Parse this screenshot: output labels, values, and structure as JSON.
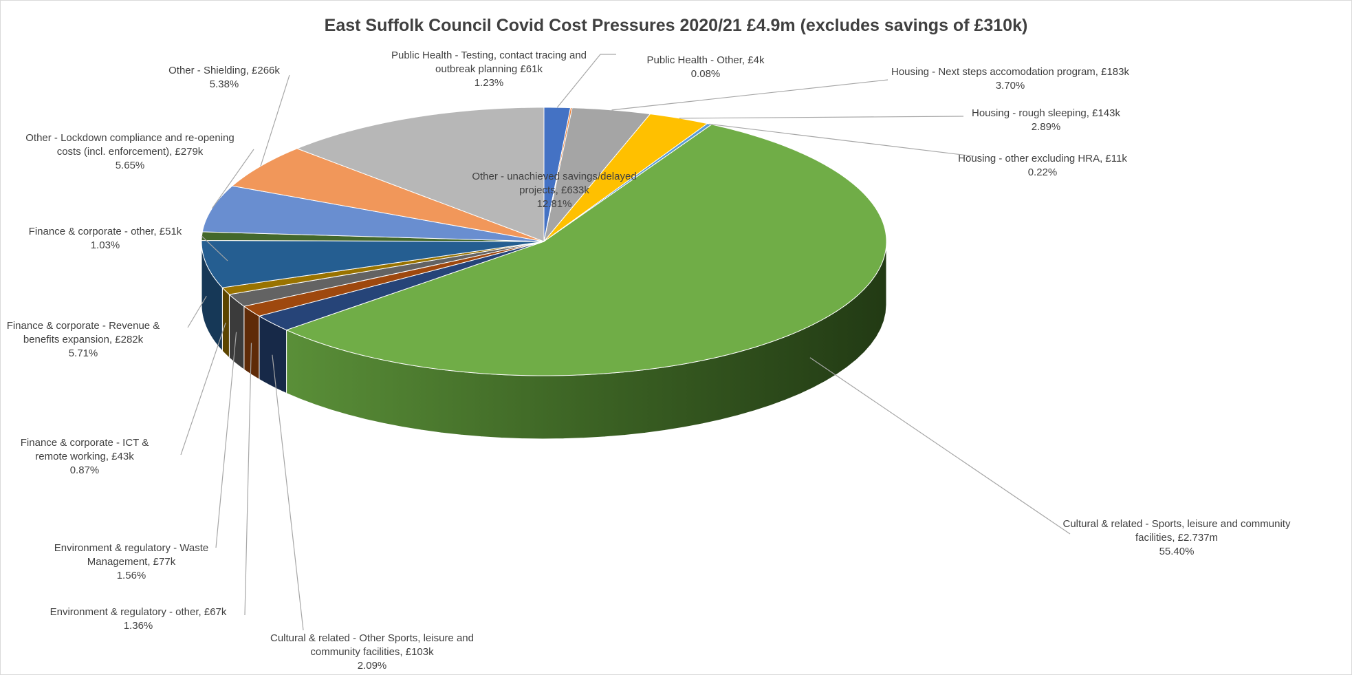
{
  "chart_data": {
    "type": "pie",
    "style": "3d-exploded-none",
    "title": "East Suffolk Council Covid Cost Pressures 2020/21 £4.9m (excludes savings of £310k)",
    "units": "£",
    "slices": [
      {
        "key": "ph-testing",
        "category": "Public Health - Testing, contact tracing and outbreak planning £61k",
        "value_k": 61,
        "percent": 1.23,
        "color": "#4472c4",
        "pct_label": "1.23%"
      },
      {
        "key": "ph-other",
        "category": "Public Health - Other, £4k",
        "value_k": 4,
        "percent": 0.08,
        "color": "#ed7d31",
        "pct_label": "0.08%"
      },
      {
        "key": "housing-next-steps",
        "category": "Housing - Next steps accomodation program, £183k",
        "value_k": 183,
        "percent": 3.7,
        "color": "#a5a5a5",
        "pct_label": "3.70%"
      },
      {
        "key": "housing-rough",
        "category": "Housing - rough sleeping, £143k",
        "value_k": 143,
        "percent": 2.89,
        "color": "#ffc000",
        "pct_label": "2.89%"
      },
      {
        "key": "housing-other",
        "category": "Housing - other excluding HRA, £11k",
        "value_k": 11,
        "percent": 0.22,
        "color": "#5b9bd5",
        "pct_label": "0.22%"
      },
      {
        "key": "cultural-sports",
        "category": "Cultural & related - Sports, leisure and community facilities, £2.737m",
        "value_k": 2737,
        "percent": 55.4,
        "color": "#70ad47",
        "pct_label": "55.40%"
      },
      {
        "key": "cultural-other",
        "category": "Cultural & related - Other Sports, leisure and community facilities, £103k",
        "value_k": 103,
        "percent": 2.09,
        "color": "#264478",
        "pct_label": "2.09%"
      },
      {
        "key": "env-other",
        "category": "Environment & regulatory - other, £67k",
        "value_k": 67,
        "percent": 1.36,
        "color": "#9e480e",
        "pct_label": "1.36%"
      },
      {
        "key": "env-waste",
        "category": "Environment & regulatory -  Waste Management, £77k",
        "value_k": 77,
        "percent": 1.56,
        "color": "#636363",
        "pct_label": "1.56%"
      },
      {
        "key": "fin-ict",
        "category": "Finance & corporate - ICT & remote working, £43k",
        "value_k": 43,
        "percent": 0.87,
        "color": "#997300",
        "pct_label": "0.87%"
      },
      {
        "key": "fin-revenue",
        "category": "Finance & corporate - Revenue & benefits expansion, £282k",
        "value_k": 282,
        "percent": 5.71,
        "color": "#255e91",
        "pct_label": "5.71%"
      },
      {
        "key": "fin-other",
        "category": "Finance & corporate - other, £51k",
        "value_k": 51,
        "percent": 1.03,
        "color": "#43682b",
        "pct_label": "1.03%"
      },
      {
        "key": "other-lockdown",
        "category": "Other - Lockdown compliance and re-opening costs (incl. enforcement), £279k",
        "value_k": 279,
        "percent": 5.65,
        "color": "#698ed0",
        "pct_label": "5.65%"
      },
      {
        "key": "other-shielding",
        "category": "Other - Shielding, £266k",
        "value_k": 266,
        "percent": 5.38,
        "color": "#f1975a",
        "pct_label": "5.38%"
      },
      {
        "key": "other-unachieved",
        "category": "Other - unachieved savings/delayed projects, £633k",
        "value_k": 633,
        "percent": 12.81,
        "color": "#b7b7b7",
        "pct_label": "12.81%"
      }
    ],
    "labels": [
      {
        "key": "ph-testing",
        "lines": [
          "Public Health - Testing, contact tracing and",
          "outbreak planning £61k",
          "1.23%"
        ]
      },
      {
        "key": "ph-other",
        "lines": [
          "Public Health - Other, £4k",
          "0.08%"
        ]
      },
      {
        "key": "housing-next-steps",
        "lines": [
          "Housing - Next steps accomodation program, £183k",
          "3.70%"
        ]
      },
      {
        "key": "housing-rough",
        "lines": [
          "Housing - rough sleeping, £143k",
          "2.89%"
        ]
      },
      {
        "key": "housing-other",
        "lines": [
          "Housing - other excluding HRA, £11k",
          "0.22%"
        ]
      },
      {
        "key": "cultural-sports",
        "lines": [
          "Cultural & related - Sports, leisure and community",
          "facilities, £2.737m",
          "55.40%"
        ]
      },
      {
        "key": "cultural-other",
        "lines": [
          "Cultural & related - Other Sports, leisure and",
          "community facilities, £103k",
          "2.09%"
        ]
      },
      {
        "key": "env-other",
        "lines": [
          "Environment & regulatory - other, £67k",
          "1.36%"
        ]
      },
      {
        "key": "env-waste",
        "lines": [
          "Environment & regulatory -  Waste",
          "Management, £77k",
          "1.56%"
        ]
      },
      {
        "key": "fin-ict",
        "lines": [
          "Finance & corporate - ICT &",
          "remote working, £43k",
          "0.87%"
        ]
      },
      {
        "key": "fin-revenue",
        "lines": [
          "Finance & corporate - Revenue &",
          "benefits expansion, £282k",
          "5.71%"
        ]
      },
      {
        "key": "fin-other",
        "lines": [
          "Finance & corporate - other, £51k",
          "1.03%"
        ]
      },
      {
        "key": "other-lockdown",
        "lines": [
          "Other - Lockdown compliance and re-opening",
          "costs (incl. enforcement), £279k",
          "5.65%"
        ]
      },
      {
        "key": "other-shielding",
        "lines": [
          "Other - Shielding, £266k",
          "5.38%"
        ]
      },
      {
        "key": "other-unachieved",
        "lines": [
          "Other - unachieved savings/delayed",
          "projects, £633k",
          "12.81%"
        ]
      }
    ]
  }
}
